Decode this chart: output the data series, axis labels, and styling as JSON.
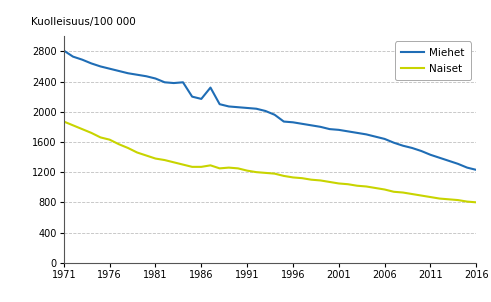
{
  "title_ylabel": "Kuolleisuus/100 000",
  "miehet_years": [
    1971,
    1972,
    1973,
    1974,
    1975,
    1976,
    1977,
    1978,
    1979,
    1980,
    1981,
    1982,
    1983,
    1984,
    1985,
    1986,
    1987,
    1988,
    1989,
    1990,
    1991,
    1992,
    1993,
    1994,
    1995,
    1996,
    1997,
    1998,
    1999,
    2000,
    2001,
    2002,
    2003,
    2004,
    2005,
    2006,
    2007,
    2008,
    2009,
    2010,
    2011,
    2012,
    2013,
    2014,
    2015,
    2016
  ],
  "miehet_values": [
    2810,
    2730,
    2690,
    2640,
    2600,
    2570,
    2540,
    2510,
    2490,
    2470,
    2440,
    2390,
    2380,
    2390,
    2200,
    2170,
    2320,
    2100,
    2070,
    2060,
    2050,
    2040,
    2010,
    1960,
    1870,
    1860,
    1840,
    1820,
    1800,
    1770,
    1760,
    1740,
    1720,
    1700,
    1670,
    1640,
    1590,
    1550,
    1520,
    1480,
    1430,
    1390,
    1350,
    1310,
    1260,
    1230
  ],
  "naiset_years": [
    1971,
    1972,
    1973,
    1974,
    1975,
    1976,
    1977,
    1978,
    1979,
    1980,
    1981,
    1982,
    1983,
    1984,
    1985,
    1986,
    1987,
    1988,
    1989,
    1990,
    1991,
    1992,
    1993,
    1994,
    1995,
    1996,
    1997,
    1998,
    1999,
    2000,
    2001,
    2002,
    2003,
    2004,
    2005,
    2006,
    2007,
    2008,
    2009,
    2010,
    2011,
    2012,
    2013,
    2014,
    2015,
    2016
  ],
  "naiset_values": [
    1870,
    1820,
    1770,
    1720,
    1660,
    1630,
    1570,
    1520,
    1460,
    1420,
    1380,
    1360,
    1330,
    1300,
    1270,
    1270,
    1290,
    1250,
    1260,
    1250,
    1220,
    1200,
    1190,
    1180,
    1150,
    1130,
    1120,
    1100,
    1090,
    1070,
    1050,
    1040,
    1020,
    1010,
    990,
    970,
    940,
    930,
    910,
    890,
    870,
    850,
    840,
    830,
    810,
    800
  ],
  "miehet_color": "#1f6db5",
  "naiset_color": "#c8d400",
  "line_width": 1.5,
  "xlim": [
    1971,
    2016
  ],
  "ylim": [
    0,
    3000
  ],
  "yticks": [
    0,
    400,
    800,
    1200,
    1600,
    2000,
    2400,
    2800
  ],
  "xticks": [
    1971,
    1976,
    1981,
    1986,
    1991,
    1996,
    2001,
    2006,
    2011,
    2016
  ],
  "legend_miehet": "Miehet",
  "legend_naiset": "Naiset",
  "background_color": "#ffffff",
  "grid_color": "#c0c0c0"
}
